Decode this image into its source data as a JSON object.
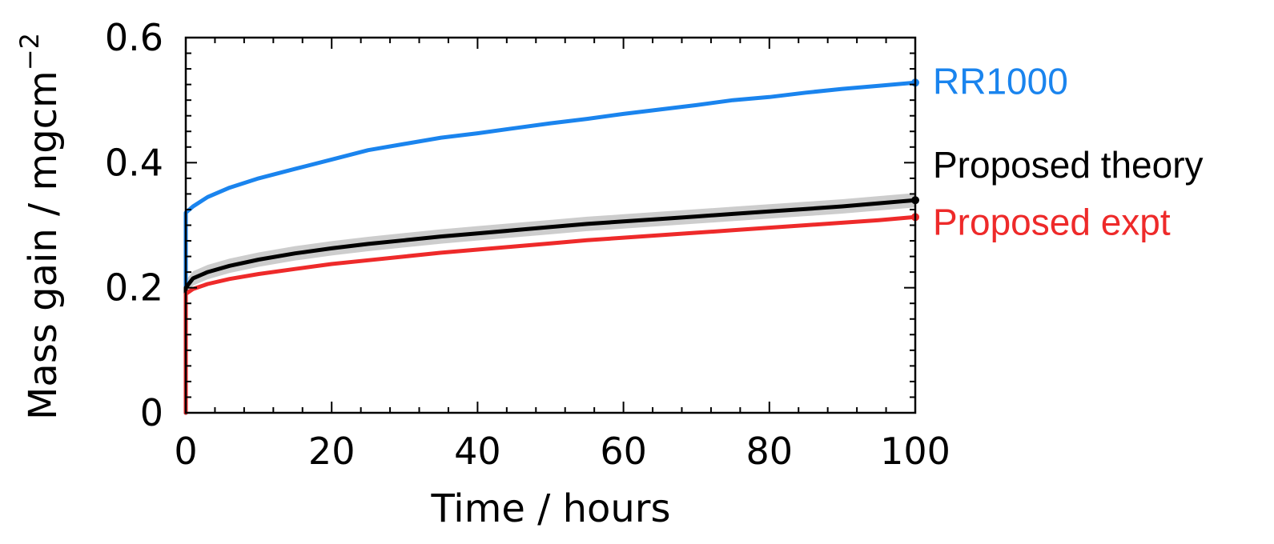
{
  "chart_data": {
    "type": "line",
    "title": "",
    "xlabel": "Time / hours",
    "ylabel": "Mass gain / mgcm",
    "ylabel_exponent": "−2",
    "xlim": [
      0,
      100
    ],
    "ylim": [
      0,
      0.6
    ],
    "xticks": [
      "0",
      "20",
      "40",
      "60",
      "80",
      "100"
    ],
    "yticks": [
      "0",
      "0.2",
      "0.4",
      "0.6"
    ],
    "grid": false,
    "legend": "inline-right",
    "series": [
      {
        "name": "RR1000",
        "color": "#1a84ee",
        "x": [
          0,
          0,
          1,
          3,
          6,
          10,
          15,
          20,
          25,
          30,
          35,
          40,
          45,
          50,
          55,
          60,
          65,
          70,
          75,
          80,
          85,
          90,
          95,
          100
        ],
        "values": [
          0,
          0.32,
          0.33,
          0.345,
          0.36,
          0.375,
          0.39,
          0.405,
          0.42,
          0.43,
          0.44,
          0.447,
          0.455,
          0.463,
          0.47,
          0.478,
          0.485,
          0.492,
          0.5,
          0.505,
          0.512,
          0.518,
          0.523,
          0.528
        ]
      },
      {
        "name": "Proposed theory",
        "color": "#000000",
        "band_color": "#c8c8c8",
        "x": [
          0,
          0,
          1,
          3,
          6,
          10,
          15,
          20,
          25,
          30,
          35,
          40,
          45,
          50,
          55,
          60,
          65,
          70,
          75,
          80,
          85,
          90,
          95,
          100
        ],
        "values": [
          0,
          0.2,
          0.215,
          0.225,
          0.235,
          0.245,
          0.255,
          0.263,
          0.27,
          0.276,
          0.282,
          0.287,
          0.292,
          0.297,
          0.302,
          0.306,
          0.31,
          0.314,
          0.318,
          0.322,
          0.326,
          0.33,
          0.335,
          0.34
        ]
      },
      {
        "name": "Proposed expt",
        "color": "#ee2a2a",
        "x": [
          0,
          0,
          1,
          3,
          6,
          10,
          15,
          20,
          25,
          30,
          35,
          40,
          45,
          50,
          55,
          60,
          65,
          70,
          75,
          80,
          85,
          90,
          95,
          100
        ],
        "values": [
          0,
          0.19,
          0.198,
          0.206,
          0.214,
          0.222,
          0.23,
          0.238,
          0.244,
          0.25,
          0.256,
          0.261,
          0.266,
          0.271,
          0.276,
          0.28,
          0.284,
          0.288,
          0.292,
          0.296,
          0.3,
          0.304,
          0.308,
          0.313
        ]
      }
    ]
  }
}
